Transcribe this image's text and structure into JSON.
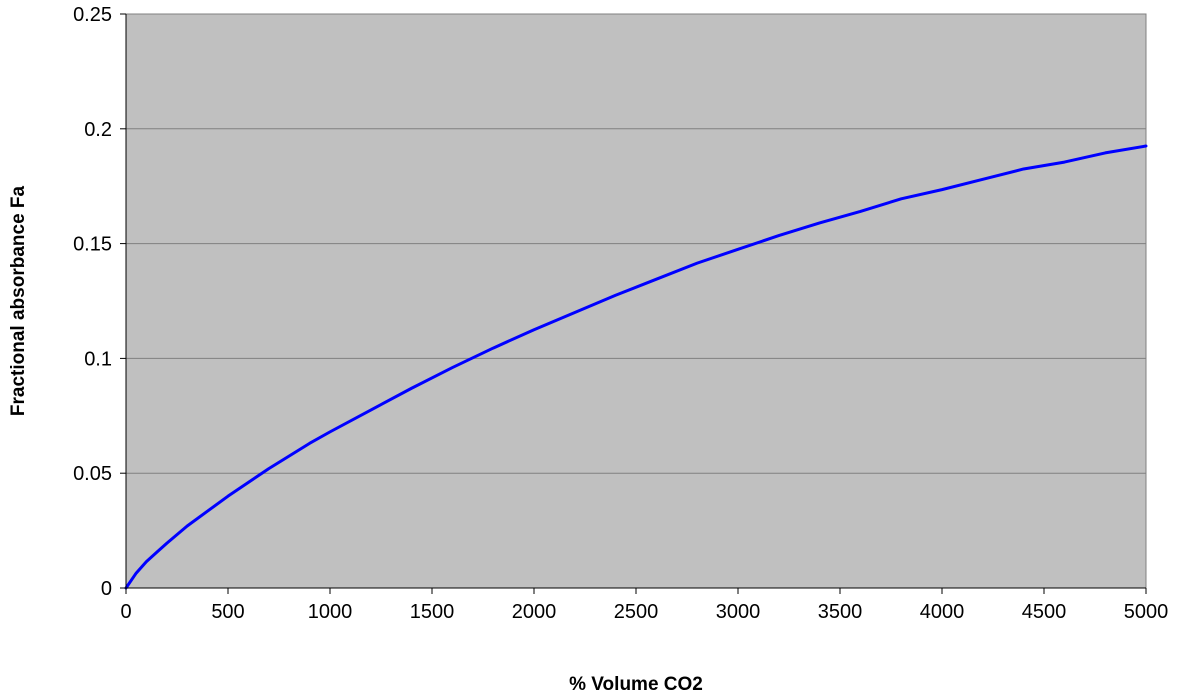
{
  "chart_data": {
    "type": "line",
    "title": "",
    "xlabel": "% Volume CO2",
    "ylabel": "Fractional absorbance Fa",
    "xlim": [
      0,
      5000
    ],
    "ylim": [
      0,
      0.25
    ],
    "x_ticks": [
      "0",
      "500",
      "1000",
      "1500",
      "2000",
      "2500",
      "3000",
      "3500",
      "4000",
      "4500",
      "5000"
    ],
    "y_ticks": [
      "0",
      "0.05",
      "0.1",
      "0.15",
      "0.2",
      "0.25"
    ],
    "grid": "horizontal",
    "legend": "none",
    "colors": {
      "plot_background": "#c0c0c0",
      "line": "#0000ff",
      "gridline": "#808080",
      "axis": "#000000"
    },
    "series": [
      {
        "x": [
          0,
          50,
          100,
          150,
          200,
          300,
          400,
          500,
          600,
          700,
          800,
          900,
          1000,
          1200,
          1400,
          1600,
          1800,
          2000,
          2200,
          2400,
          2600,
          2800,
          3000,
          3200,
          3400,
          3600,
          3800,
          4000,
          4200,
          4400,
          4600,
          4800,
          5000
        ],
        "values": [
          0,
          0.0065,
          0.0115,
          0.0155,
          0.0195,
          0.027,
          0.0335,
          0.04,
          0.046,
          0.052,
          0.0575,
          0.063,
          0.068,
          0.0775,
          0.087,
          0.096,
          0.1045,
          0.1125,
          0.12,
          0.1275,
          0.1345,
          0.1415,
          0.1475,
          0.1535,
          0.159,
          0.164,
          0.1695,
          0.1735,
          0.178,
          0.1825,
          0.1855,
          0.1895,
          0.1925
        ]
      }
    ]
  }
}
